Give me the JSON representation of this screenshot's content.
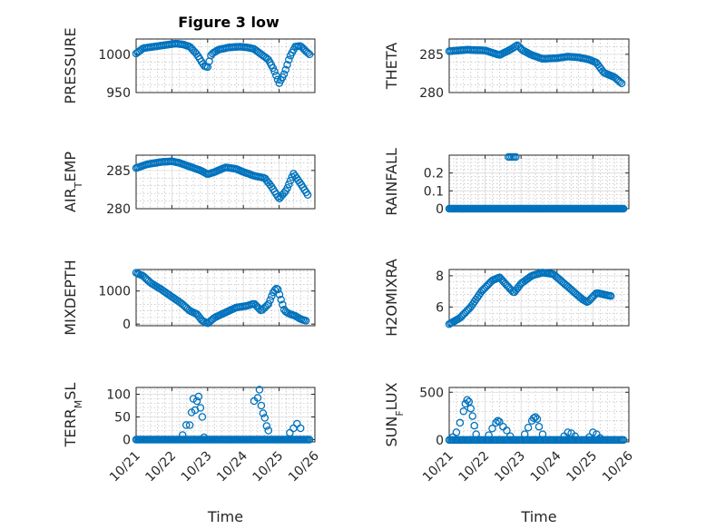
{
  "figure_title": "Figure 3 low",
  "colors": {
    "marker": "#0072BD",
    "axis": "#262626"
  },
  "chart_data": [
    {
      "type": "scatter",
      "ylabel": "PRESSURE",
      "xlabel": "",
      "xlim": [
        0,
        5
      ],
      "ylim": [
        950,
        1020
      ],
      "yticks": [
        950,
        1000
      ],
      "ytick_labels": [
        "950",
        "1000"
      ],
      "xticks": [
        0,
        1,
        2,
        3,
        4,
        5
      ],
      "xtick_labels": [],
      "grid": true,
      "knots": [
        [
          0.0,
          1001
        ],
        [
          0.2,
          1008
        ],
        [
          0.5,
          1010
        ],
        [
          0.8,
          1012
        ],
        [
          1.1,
          1014
        ],
        [
          1.3,
          1013
        ],
        [
          1.5,
          1010
        ],
        [
          1.7,
          1000
        ],
        [
          1.9,
          985
        ],
        [
          2.0,
          983
        ],
        [
          2.1,
          1000
        ],
        [
          2.3,
          1006
        ],
        [
          2.6,
          1009
        ],
        [
          2.9,
          1010
        ],
        [
          3.1,
          1009
        ],
        [
          3.3,
          1007
        ],
        [
          3.5,
          1000
        ],
        [
          3.7,
          993
        ],
        [
          3.85,
          980
        ],
        [
          4.0,
          962
        ],
        [
          4.15,
          975
        ],
        [
          4.3,
          997
        ],
        [
          4.45,
          1010
        ],
        [
          4.6,
          1011
        ],
        [
          4.75,
          1004
        ],
        [
          4.85,
          1000
        ]
      ],
      "n_points": 110
    },
    {
      "type": "scatter",
      "ylabel": "THETA",
      "xlabel": "",
      "xlim": [
        0,
        5
      ],
      "ylim": [
        280,
        287
      ],
      "yticks": [
        280,
        285
      ],
      "ytick_labels": [
        "280",
        "285"
      ],
      "xticks": [
        0,
        1,
        2,
        3,
        4,
        5
      ],
      "xtick_labels": [],
      "grid": true,
      "knots": [
        [
          0.0,
          285.4
        ],
        [
          0.5,
          285.6
        ],
        [
          1.0,
          285.5
        ],
        [
          1.4,
          284.9
        ],
        [
          1.7,
          285.6
        ],
        [
          1.9,
          286.2
        ],
        [
          2.05,
          285.5
        ],
        [
          2.3,
          284.9
        ],
        [
          2.6,
          284.4
        ],
        [
          3.0,
          284.5
        ],
        [
          3.3,
          284.7
        ],
        [
          3.6,
          284.6
        ],
        [
          3.9,
          284.3
        ],
        [
          4.1,
          283.9
        ],
        [
          4.3,
          282.6
        ],
        [
          4.6,
          282.0
        ],
        [
          4.8,
          281.2
        ]
      ],
      "n_points": 110
    },
    {
      "type": "scatter",
      "ylabel": "AIR_T EMP",
      "xlabel": "",
      "xlim": [
        0,
        5
      ],
      "ylim": [
        280,
        287
      ],
      "yticks": [
        280,
        285
      ],
      "ytick_labels": [
        "280",
        "285"
      ],
      "xticks": [
        0,
        1,
        2,
        3,
        4,
        5
      ],
      "xtick_labels": [],
      "grid": true,
      "knots": [
        [
          0.0,
          285.3
        ],
        [
          0.3,
          285.8
        ],
        [
          0.7,
          286.1
        ],
        [
          1.0,
          286.2
        ],
        [
          1.2,
          286.0
        ],
        [
          1.5,
          285.5
        ],
        [
          1.8,
          285.0
        ],
        [
          2.0,
          284.5
        ],
        [
          2.2,
          284.8
        ],
        [
          2.5,
          285.4
        ],
        [
          2.8,
          285.2
        ],
        [
          3.0,
          284.8
        ],
        [
          3.3,
          284.3
        ],
        [
          3.6,
          284.0
        ],
        [
          3.8,
          282.8
        ],
        [
          4.0,
          281.3
        ],
        [
          4.2,
          282.4
        ],
        [
          4.4,
          284.6
        ],
        [
          4.6,
          283.3
        ],
        [
          4.8,
          281.8
        ]
      ],
      "n_points": 110
    },
    {
      "type": "scatter",
      "ylabel": "RAINFALL",
      "xlabel": "",
      "xlim": [
        0,
        5
      ],
      "ylim": [
        0,
        0.3
      ],
      "yticks": [
        0,
        0.1,
        0.2
      ],
      "ytick_labels": [
        "0",
        "0.1",
        "0.2"
      ],
      "xticks": [
        0,
        1,
        2,
        3,
        4,
        5
      ],
      "xtick_labels": [],
      "grid": true,
      "flat": {
        "x_start": 0.0,
        "x_end": 4.85,
        "y": 0,
        "n": 150
      },
      "extra_points": [
        [
          1.65,
          0.29
        ],
        [
          1.7,
          0.29
        ],
        [
          1.75,
          0.29
        ],
        [
          1.8,
          0.29
        ],
        [
          1.85,
          0.29
        ]
      ]
    },
    {
      "type": "scatter",
      "ylabel": "MIXDEPTH",
      "xlabel": "",
      "xlim": [
        0,
        5
      ],
      "ylim": [
        -50,
        1650
      ],
      "yticks": [
        0,
        1000
      ],
      "ytick_labels": [
        "0",
        "1000"
      ],
      "xticks": [
        0,
        1,
        2,
        3,
        4,
        5
      ],
      "xtick_labels": [],
      "grid": true,
      "knots": [
        [
          0.0,
          1550
        ],
        [
          0.2,
          1450
        ],
        [
          0.4,
          1250
        ],
        [
          0.7,
          1050
        ],
        [
          0.9,
          900
        ],
        [
          1.1,
          750
        ],
        [
          1.3,
          600
        ],
        [
          1.5,
          400
        ],
        [
          1.7,
          300
        ],
        [
          1.85,
          100
        ],
        [
          2.0,
          20
        ],
        [
          2.2,
          200
        ],
        [
          2.5,
          350
        ],
        [
          2.8,
          500
        ],
        [
          3.1,
          550
        ],
        [
          3.3,
          620
        ],
        [
          3.5,
          400
        ],
        [
          3.7,
          600
        ],
        [
          3.85,
          1000
        ],
        [
          3.95,
          1100
        ],
        [
          4.05,
          750
        ],
        [
          4.15,
          400
        ],
        [
          4.3,
          300
        ],
        [
          4.45,
          250
        ],
        [
          4.6,
          150
        ],
        [
          4.75,
          100
        ]
      ],
      "n_points": 110
    },
    {
      "type": "scatter",
      "ylabel": "H2OMIXRA",
      "xlabel": "",
      "xlim": [
        0,
        5
      ],
      "ylim": [
        4.8,
        8.4
      ],
      "yticks": [
        6,
        8
      ],
      "ytick_labels": [
        "6",
        "8"
      ],
      "xticks": [
        0,
        1,
        2,
        3,
        4,
        5
      ],
      "xtick_labels": [],
      "grid": true,
      "knots": [
        [
          0.0,
          4.9
        ],
        [
          0.3,
          5.3
        ],
        [
          0.6,
          6.0
        ],
        [
          0.9,
          7.0
        ],
        [
          1.2,
          7.7
        ],
        [
          1.4,
          7.9
        ],
        [
          1.6,
          7.4
        ],
        [
          1.8,
          6.9
        ],
        [
          2.0,
          7.5
        ],
        [
          2.3,
          8.0
        ],
        [
          2.6,
          8.2
        ],
        [
          2.9,
          8.1
        ],
        [
          3.2,
          7.5
        ],
        [
          3.5,
          6.9
        ],
        [
          3.7,
          6.5
        ],
        [
          3.85,
          6.3
        ],
        [
          4.1,
          6.9
        ],
        [
          4.3,
          6.8
        ],
        [
          4.5,
          6.7
        ]
      ],
      "n_points": 110
    },
    {
      "type": "scatter",
      "ylabel": "TERR_M SL",
      "xlabel": "Time",
      "xlim": [
        0,
        5
      ],
      "ylim": [
        -5,
        115
      ],
      "yticks": [
        0,
        50,
        100
      ],
      "ytick_labels": [
        "0",
        "50",
        "100"
      ],
      "xticks": [
        0,
        1,
        2,
        3,
        4,
        5
      ],
      "xtick_labels": [
        "10/21",
        "10/22",
        "10/23",
        "10/24",
        "10/25",
        "10/26"
      ],
      "grid": true,
      "flat": {
        "x_start": 0.0,
        "x_end": 4.85,
        "y": 0,
        "n": 130
      },
      "extra_points": [
        [
          1.3,
          10
        ],
        [
          1.4,
          32
        ],
        [
          1.5,
          32
        ],
        [
          1.55,
          60
        ],
        [
          1.6,
          90
        ],
        [
          1.65,
          65
        ],
        [
          1.7,
          85
        ],
        [
          1.75,
          95
        ],
        [
          1.8,
          70
        ],
        [
          1.85,
          50
        ],
        [
          1.9,
          5
        ],
        [
          3.3,
          85
        ],
        [
          3.4,
          92
        ],
        [
          3.45,
          110
        ],
        [
          3.5,
          75
        ],
        [
          3.55,
          58
        ],
        [
          3.6,
          48
        ],
        [
          3.65,
          30
        ],
        [
          3.7,
          20
        ],
        [
          4.3,
          15
        ],
        [
          4.4,
          25
        ],
        [
          4.5,
          35
        ],
        [
          4.6,
          25
        ]
      ]
    },
    {
      "type": "scatter",
      "ylabel": "SUN_F LUX",
      "xlabel": "Time",
      "xlim": [
        0,
        5
      ],
      "ylim": [
        -20,
        550
      ],
      "yticks": [
        0,
        500
      ],
      "ytick_labels": [
        "0",
        "500"
      ],
      "xticks": [
        0,
        1,
        2,
        3,
        4,
        5
      ],
      "xtick_labels": [
        "10/21",
        "10/22",
        "10/23",
        "10/24",
        "10/25",
        "10/26"
      ],
      "grid": true,
      "flat": {
        "x_start": 0.0,
        "x_end": 4.85,
        "y": 0,
        "n": 120
      },
      "extra_points": [
        [
          0.1,
          30
        ],
        [
          0.2,
          80
        ],
        [
          0.3,
          180
        ],
        [
          0.4,
          300
        ],
        [
          0.45,
          380
        ],
        [
          0.5,
          420
        ],
        [
          0.55,
          400
        ],
        [
          0.6,
          330
        ],
        [
          0.65,
          250
        ],
        [
          0.7,
          150
        ],
        [
          0.75,
          60
        ],
        [
          1.1,
          50
        ],
        [
          1.2,
          120
        ],
        [
          1.3,
          180
        ],
        [
          1.35,
          200
        ],
        [
          1.4,
          190
        ],
        [
          1.5,
          140
        ],
        [
          1.6,
          100
        ],
        [
          1.7,
          40
        ],
        [
          2.1,
          60
        ],
        [
          2.2,
          130
        ],
        [
          2.3,
          200
        ],
        [
          2.35,
          230
        ],
        [
          2.4,
          240
        ],
        [
          2.45,
          220
        ],
        [
          2.5,
          140
        ],
        [
          2.6,
          60
        ],
        [
          3.2,
          40
        ],
        [
          3.3,
          80
        ],
        [
          3.4,
          70
        ],
        [
          3.5,
          40
        ],
        [
          3.9,
          30
        ],
        [
          4.0,
          80
        ],
        [
          4.1,
          60
        ],
        [
          4.2,
          20
        ]
      ]
    }
  ]
}
